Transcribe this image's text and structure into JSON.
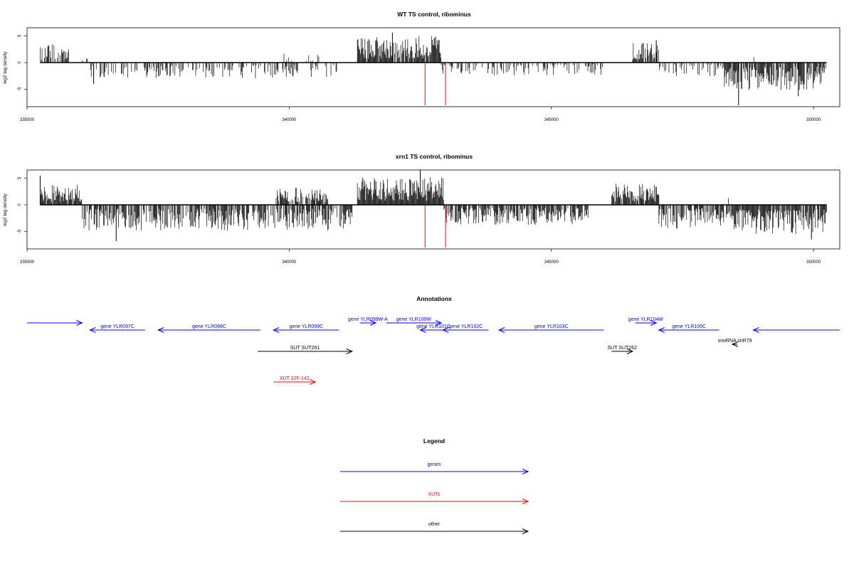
{
  "chart_data": [
    {
      "type": "bar",
      "title": "WT TS control, ribominus",
      "ylabel": "log2 tag density",
      "xlim": [
        335000,
        350500
      ],
      "ylim": [
        -8,
        6
      ],
      "x_ticks": [
        "335000",
        "340000",
        "345000",
        "350000"
      ],
      "y_ticks": [
        "5",
        "0",
        "-5"
      ],
      "profile": {
        "start": 335250,
        "end": 350250,
        "pos_regions": [
          {
            "from": 335250,
            "to": 335800,
            "max": 3.5,
            "density": 0.55
          },
          {
            "from": 335800,
            "to": 336200,
            "max": 1.0,
            "density": 0.15
          },
          {
            "from": 339900,
            "to": 340300,
            "max": 2.2,
            "density": 0.2
          },
          {
            "from": 340300,
            "to": 340700,
            "max": 1.5,
            "density": 0.15
          },
          {
            "from": 341300,
            "to": 342900,
            "max": 5.0,
            "density": 0.9
          },
          {
            "from": 346550,
            "to": 347050,
            "max": 3.8,
            "density": 0.8
          },
          {
            "from": 348800,
            "to": 348900,
            "max": 1.5,
            "density": 0.1
          }
        ],
        "neg_regions": [
          {
            "from": 336200,
            "to": 339800,
            "max": 3.0,
            "density": 0.35
          },
          {
            "from": 339800,
            "to": 341000,
            "max": 2.8,
            "density": 0.35
          },
          {
            "from": 342900,
            "to": 346000,
            "max": 2.4,
            "density": 0.35
          },
          {
            "from": 347050,
            "to": 348300,
            "max": 2.6,
            "density": 0.4
          },
          {
            "from": 348300,
            "to": 350250,
            "max": 5.2,
            "density": 0.8
          }
        ],
        "peaks": [
          {
            "x": 341968,
            "y": 5.6
          },
          {
            "x": 347000,
            "y": 4.2
          },
          {
            "x": 348570,
            "y": -8.0
          },
          {
            "x": 349710,
            "y": -6.3
          },
          {
            "x": 336270,
            "y": -4.0
          }
        ]
      },
      "markers": [
        {
          "x": 342590,
          "color": "#ff0000"
        },
        {
          "x": 342980,
          "color": "#ff0000"
        }
      ]
    },
    {
      "type": "bar",
      "title": "xrn1 TS control, ribominus",
      "ylabel": "log2 tag density",
      "xlim": [
        335000,
        350500
      ],
      "ylim": [
        -8,
        6
      ],
      "x_ticks": [
        "335000",
        "340000",
        "345000",
        "350000"
      ],
      "y_ticks": [
        "5",
        "0",
        "-5"
      ],
      "profile": {
        "start": 335250,
        "end": 350250,
        "pos_regions": [
          {
            "from": 335250,
            "to": 336050,
            "max": 3.8,
            "density": 0.95
          },
          {
            "from": 339750,
            "to": 340750,
            "max": 3.2,
            "density": 0.75
          },
          {
            "from": 341300,
            "to": 342950,
            "max": 5.2,
            "density": 1.0
          },
          {
            "from": 346150,
            "to": 347050,
            "max": 4.0,
            "density": 0.9
          },
          {
            "from": 348350,
            "to": 348450,
            "max": 2.0,
            "density": 0.3
          }
        ],
        "neg_regions": [
          {
            "from": 336050,
            "to": 339700,
            "max": 4.8,
            "density": 0.7
          },
          {
            "from": 339700,
            "to": 341200,
            "max": 4.8,
            "density": 0.75
          },
          {
            "from": 342950,
            "to": 345700,
            "max": 3.8,
            "density": 0.8
          },
          {
            "from": 347050,
            "to": 348400,
            "max": 4.5,
            "density": 0.75
          },
          {
            "from": 348400,
            "to": 350250,
            "max": 5.5,
            "density": 0.85
          }
        ],
        "peaks": [
          {
            "x": 335250,
            "y": 5.5
          },
          {
            "x": 342500,
            "y": 6.6
          },
          {
            "x": 336700,
            "y": -6.8
          },
          {
            "x": 349960,
            "y": -6.5
          }
        ]
      },
      "markers": [
        {
          "x": 342590,
          "color": "#ff0000"
        },
        {
          "x": 342980,
          "color": "#ff0000"
        }
      ]
    }
  ],
  "annotations": {
    "title": "Annotations",
    "xlim": [
      335000,
      350500
    ],
    "features": [
      {
        "label": "",
        "start": 334500,
        "end": 336050,
        "strand": "+",
        "row": 0,
        "color": "#0000ff"
      },
      {
        "label": "gene YLR097C",
        "start": 336200,
        "end": 337250,
        "strand": "-",
        "row": 1,
        "color": "#0000ff"
      },
      {
        "label": "gene YLR098C",
        "start": 337500,
        "end": 339450,
        "strand": "-",
        "row": 1,
        "color": "#0000ff"
      },
      {
        "label": "gene YLR099C",
        "start": 339700,
        "end": 340950,
        "strand": "-",
        "row": 1,
        "color": "#0000ff"
      },
      {
        "label": "gene YLR099W-A",
        "start": 341350,
        "end": 341650,
        "strand": "+",
        "row": 0,
        "color": "#0000ff"
      },
      {
        "label": "gene YLR100W",
        "start": 341850,
        "end": 342900,
        "strand": "+",
        "row": 0,
        "color": "#0000ff"
      },
      {
        "label": "gene YLR101C",
        "start": 342500,
        "end": 343000,
        "strand": "-",
        "row": 1,
        "color": "#0000ff"
      },
      {
        "label": "gene YLR102C",
        "start": 342930,
        "end": 343800,
        "strand": "-",
        "row": 1,
        "color": "#0000ff"
      },
      {
        "label": "gene YLR103C",
        "start": 344000,
        "end": 346000,
        "strand": "-",
        "row": 1,
        "color": "#0000ff"
      },
      {
        "label": "gene YLR104W",
        "start": 346600,
        "end": 347000,
        "strand": "+",
        "row": 0,
        "color": "#0000ff"
      },
      {
        "label": "gene YLR105C",
        "start": 347050,
        "end": 348200,
        "strand": "-",
        "row": 1,
        "color": "#0000ff"
      },
      {
        "label": "",
        "start": 348850,
        "end": 351200,
        "strand": "-",
        "row": 1,
        "color": "#0000ff"
      },
      {
        "label": "SUT SUT261",
        "start": 339400,
        "end": 341200,
        "strand": "+",
        "row": 2,
        "color": "#000000"
      },
      {
        "label": "SUT SUT262",
        "start": 346150,
        "end": 346550,
        "strand": "+",
        "row": 2,
        "color": "#000000"
      },
      {
        "label": "snoRNA snR79",
        "start": 348450,
        "end": 348550,
        "strand": "-",
        "row": 3,
        "color": "#000000"
      },
      {
        "label": "XUT 12F-142",
        "start": 339700,
        "end": 340500,
        "strand": "+",
        "row": 4,
        "color": "#ff0000"
      }
    ]
  },
  "legend": {
    "title": "Legend",
    "items": [
      {
        "label": "genes",
        "color": "#0000ff"
      },
      {
        "label": "XUTs",
        "color": "#ff0000"
      },
      {
        "label": "other",
        "color": "#000000"
      }
    ]
  }
}
